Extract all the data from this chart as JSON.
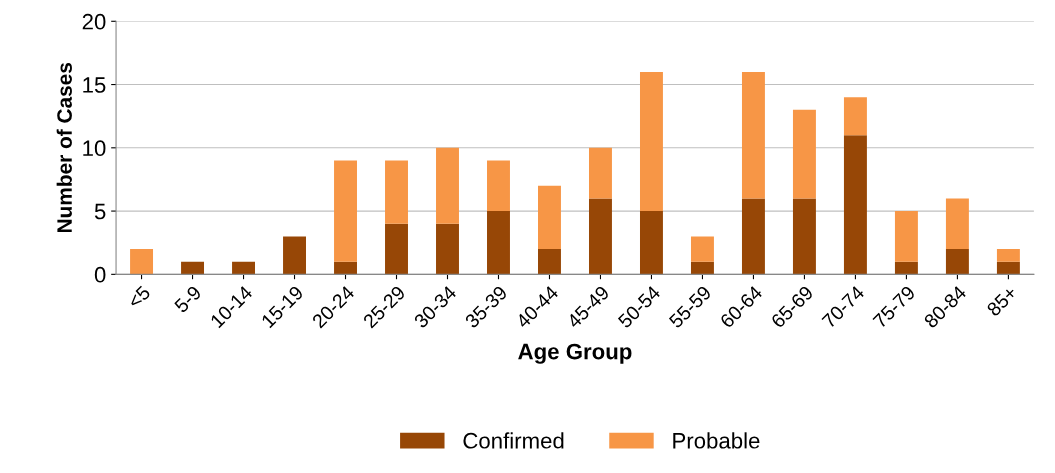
{
  "chart_data": {
    "type": "bar",
    "stacked": true,
    "xlabel": "Age Group",
    "ylabel": "Number of Cases",
    "categories": [
      "<5",
      "5-9",
      "10-14",
      "15-19",
      "20-24",
      "25-29",
      "30-34",
      "35-39",
      "40-44",
      "45-49",
      "50-54",
      "55-59",
      "60-64",
      "65-69",
      "70-74",
      "75-79",
      "80-84",
      "85+"
    ],
    "series": [
      {
        "name": "Confirmed",
        "color": "#974706",
        "values": [
          0,
          1,
          1,
          3,
          1,
          4,
          4,
          5,
          2,
          6,
          5,
          1,
          6,
          6,
          11,
          1,
          2,
          1
        ]
      },
      {
        "name": "Probable",
        "color": "#f79646",
        "values": [
          2,
          0,
          0,
          0,
          8,
          5,
          6,
          4,
          5,
          4,
          11,
          2,
          10,
          7,
          3,
          4,
          4,
          1
        ]
      }
    ],
    "ylim": [
      0,
      20
    ],
    "yticks": [
      0,
      5,
      10,
      15,
      20
    ],
    "grid": "y",
    "legend": "bottom"
  }
}
